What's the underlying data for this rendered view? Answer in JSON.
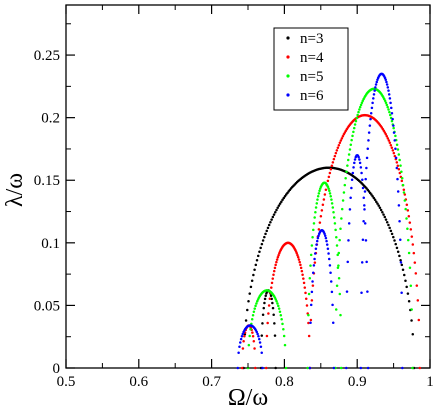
{
  "chart_data": {
    "type": "scatter",
    "title": "",
    "xlabel": "Ω/ω",
    "ylabel": "λ/ω",
    "xlim": [
      0.5,
      1.0
    ],
    "ylim": [
      0,
      0.29
    ],
    "xticks": [
      0.5,
      0.6,
      0.7,
      0.8,
      0.9,
      1.0
    ],
    "xtick_labels": [
      "0.5",
      "0.6",
      "0.7",
      "0.8",
      "0.9",
      "1"
    ],
    "yticks": [
      0,
      0.05,
      0.1,
      0.15,
      0.2,
      0.25
    ],
    "ytick_labels": [
      "0",
      "0.05",
      "0.1",
      "0.15",
      "0.2",
      "0.25"
    ],
    "grid": false,
    "legend_position": "top-right",
    "series": [
      {
        "name": "n=3",
        "color": "#000000",
        "lobes": [
          {
            "x0": 0.768,
            "x1": 0.788,
            "peak": 0.062,
            "n": 22
          },
          {
            "x0": 0.744,
            "x1": 0.978,
            "peak": 0.16,
            "n": 140
          }
        ]
      },
      {
        "name": "n=4",
        "color": "#ff0000",
        "lobes": [
          {
            "x0": 0.742,
            "x1": 0.76,
            "peak": 0.034,
            "n": 18
          },
          {
            "x0": 0.775,
            "x1": 0.835,
            "peak": 0.1,
            "n": 60
          },
          {
            "x0": 0.835,
            "x1": 0.986,
            "peak": 0.202,
            "n": 110
          }
        ]
      },
      {
        "name": "n=5",
        "color": "#00ff00",
        "lobes": [
          {
            "x0": 0.75,
            "x1": 0.802,
            "peak": 0.062,
            "n": 45
          },
          {
            "x0": 0.832,
            "x1": 0.878,
            "peak": 0.148,
            "n": 48
          },
          {
            "x0": 0.87,
            "x1": 0.976,
            "peak": 0.223,
            "n": 90
          }
        ]
      },
      {
        "name": "n=6",
        "color": "#0000ff",
        "lobes": [
          {
            "x0": 0.736,
            "x1": 0.77,
            "peak": 0.034,
            "n": 30
          },
          {
            "x0": 0.835,
            "x1": 0.868,
            "peak": 0.11,
            "n": 36
          },
          {
            "x0": 0.885,
            "x1": 0.915,
            "peak": 0.17,
            "n": 30
          },
          {
            "x0": 0.905,
            "x1": 0.962,
            "peak": 0.235,
            "n": 60
          }
        ]
      }
    ]
  }
}
